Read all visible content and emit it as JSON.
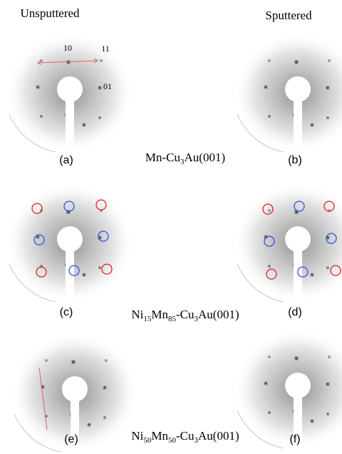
{
  "headers": {
    "left": "Unsputtered",
    "right": "Sputtered"
  },
  "index_labels": [
    "10",
    "11",
    "01"
  ],
  "rows": [
    {
      "left_label": "(a)",
      "right_label": "(b)",
      "formula": [
        "Mn-Cu",
        "3",
        "Au(001)"
      ]
    },
    {
      "left_label": "(c)",
      "right_label": "(d)",
      "formula": [
        "Ni",
        "15",
        "Mn",
        "85",
        "-Cu",
        "3",
        "Au(001)"
      ]
    },
    {
      "left_label": "(e)",
      "right_label": "(f)",
      "formula": [
        "Ni",
        "50",
        "Mn",
        "50",
        "-Cu",
        "3",
        "Au(001)"
      ]
    }
  ]
}
